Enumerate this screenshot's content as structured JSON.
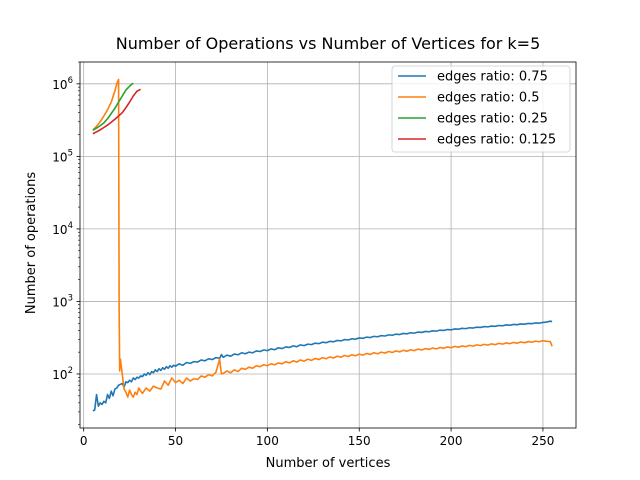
{
  "chart_data": {
    "type": "line",
    "title": "Number of Operations vs Number of Vertices for k=5",
    "xlabel": "Number of vertices",
    "ylabel": "Number of operations",
    "xlim": [
      -2,
      268
    ],
    "ylim": [
      18,
      2000000
    ],
    "yscale": "log",
    "grid": true,
    "legend_position": "top-right",
    "x_ticks": [
      0,
      50,
      100,
      150,
      200,
      250
    ],
    "x_tick_labels": [
      "0",
      "50",
      "100",
      "150",
      "200",
      "250"
    ],
    "y_ticks": [
      100,
      1000,
      10000,
      100000,
      1000000
    ],
    "y_tick_labels": [
      {
        "base": "10",
        "exp": "2"
      },
      {
        "base": "10",
        "exp": "3"
      },
      {
        "base": "10",
        "exp": "4"
      },
      {
        "base": "10",
        "exp": "5"
      },
      {
        "base": "10",
        "exp": "6"
      }
    ],
    "series": [
      {
        "name": "edges ratio: 0.75",
        "color": "#1f77b4",
        "points": [
          [
            5,
            31
          ],
          [
            6,
            32
          ],
          [
            7,
            52
          ],
          [
            8,
            36
          ],
          [
            9,
            40
          ],
          [
            10,
            38
          ],
          [
            11,
            42
          ],
          [
            12,
            40
          ],
          [
            13,
            52
          ],
          [
            14,
            46
          ],
          [
            15,
            58
          ],
          [
            16,
            50
          ],
          [
            17,
            62
          ],
          [
            18,
            64
          ],
          [
            19,
            70
          ],
          [
            20,
            72
          ],
          [
            21,
            74
          ],
          [
            22,
            66
          ],
          [
            23,
            78
          ],
          [
            24,
            76
          ],
          [
            25,
            82
          ],
          [
            26,
            78
          ],
          [
            27,
            88
          ],
          [
            28,
            84
          ],
          [
            29,
            90
          ],
          [
            30,
            88
          ],
          [
            31,
            94
          ],
          [
            32,
            92
          ],
          [
            33,
            100
          ],
          [
            34,
            96
          ],
          [
            35,
            104
          ],
          [
            36,
            98
          ],
          [
            37,
            108
          ],
          [
            38,
            104
          ],
          [
            39,
            114
          ],
          [
            40,
            108
          ],
          [
            41,
            118
          ],
          [
            42,
            112
          ],
          [
            43,
            122
          ],
          [
            44,
            116
          ],
          [
            45,
            126
          ],
          [
            46,
            120
          ],
          [
            47,
            130
          ],
          [
            48,
            124
          ],
          [
            49,
            132
          ],
          [
            50,
            128
          ],
          [
            52,
            138
          ],
          [
            54,
            132
          ],
          [
            56,
            144
          ],
          [
            58,
            140
          ],
          [
            60,
            148
          ],
          [
            62,
            146
          ],
          [
            64,
            156
          ],
          [
            66,
            152
          ],
          [
            68,
            162
          ],
          [
            70,
            158
          ],
          [
            72,
            168
          ],
          [
            74,
            164
          ],
          [
            75,
            185
          ],
          [
            76,
            170
          ],
          [
            78,
            182
          ],
          [
            80,
            176
          ],
          [
            82,
            188
          ],
          [
            84,
            184
          ],
          [
            86,
            196
          ],
          [
            88,
            190
          ],
          [
            90,
            200
          ],
          [
            92,
            196
          ],
          [
            94,
            208
          ],
          [
            96,
            204
          ],
          [
            98,
            214
          ],
          [
            100,
            210
          ],
          [
            102,
            222
          ],
          [
            104,
            216
          ],
          [
            106,
            230
          ],
          [
            108,
            224
          ],
          [
            110,
            236
          ],
          [
            112,
            232
          ],
          [
            114,
            244
          ],
          [
            116,
            238
          ],
          [
            118,
            252
          ],
          [
            120,
            246
          ],
          [
            122,
            258
          ],
          [
            124,
            254
          ],
          [
            126,
            266
          ],
          [
            128,
            262
          ],
          [
            130,
            274
          ],
          [
            132,
            270
          ],
          [
            134,
            282
          ],
          [
            136,
            278
          ],
          [
            138,
            290
          ],
          [
            140,
            286
          ],
          [
            142,
            298
          ],
          [
            144,
            294
          ],
          [
            146,
            306
          ],
          [
            148,
            302
          ],
          [
            150,
            314
          ],
          [
            152,
            310
          ],
          [
            154,
            322
          ],
          [
            156,
            318
          ],
          [
            158,
            330
          ],
          [
            160,
            326
          ],
          [
            162,
            338
          ],
          [
            164,
            334
          ],
          [
            166,
            346
          ],
          [
            168,
            342
          ],
          [
            170,
            354
          ],
          [
            172,
            350
          ],
          [
            174,
            362
          ],
          [
            176,
            358
          ],
          [
            178,
            370
          ],
          [
            180,
            366
          ],
          [
            182,
            378
          ],
          [
            184,
            374
          ],
          [
            186,
            386
          ],
          [
            188,
            382
          ],
          [
            190,
            394
          ],
          [
            192,
            390
          ],
          [
            194,
            402
          ],
          [
            196,
            398
          ],
          [
            198,
            410
          ],
          [
            200,
            406
          ],
          [
            202,
            418
          ],
          [
            204,
            414
          ],
          [
            206,
            426
          ],
          [
            208,
            422
          ],
          [
            210,
            434
          ],
          [
            212,
            430
          ],
          [
            214,
            442
          ],
          [
            216,
            438
          ],
          [
            218,
            450
          ],
          [
            220,
            446
          ],
          [
            222,
            458
          ],
          [
            224,
            454
          ],
          [
            226,
            466
          ],
          [
            228,
            462
          ],
          [
            230,
            474
          ],
          [
            232,
            470
          ],
          [
            234,
            482
          ],
          [
            236,
            478
          ],
          [
            238,
            490
          ],
          [
            240,
            486
          ],
          [
            242,
            498
          ],
          [
            244,
            494
          ],
          [
            246,
            506
          ],
          [
            248,
            502
          ],
          [
            250,
            514
          ],
          [
            252,
            520
          ],
          [
            254,
            534
          ],
          [
            255,
            528
          ]
        ]
      },
      {
        "name": "edges ratio: 0.5",
        "color": "#ff7f0e",
        "points": [
          [
            5,
            230000
          ],
          [
            7,
            260000
          ],
          [
            9,
            300000
          ],
          [
            11,
            360000
          ],
          [
            13,
            440000
          ],
          [
            15,
            560000
          ],
          [
            17,
            800000
          ],
          [
            18,
            1000000
          ],
          [
            19,
            1150000
          ],
          [
            19.3,
            800
          ],
          [
            19.6,
            110
          ],
          [
            20,
            160
          ],
          [
            21,
            100
          ],
          [
            22,
            62
          ],
          [
            23,
            56
          ],
          [
            24,
            48
          ],
          [
            25,
            60
          ],
          [
            26,
            52
          ],
          [
            27,
            48
          ],
          [
            28,
            56
          ],
          [
            29,
            52
          ],
          [
            30,
            64
          ],
          [
            31,
            58
          ],
          [
            32,
            54
          ],
          [
            34,
            64
          ],
          [
            36,
            58
          ],
          [
            38,
            68
          ],
          [
            40,
            64
          ],
          [
            42,
            62
          ],
          [
            44,
            80
          ],
          [
            46,
            70
          ],
          [
            48,
            88
          ],
          [
            50,
            76
          ],
          [
            52,
            82
          ],
          [
            54,
            74
          ],
          [
            56,
            88
          ],
          [
            58,
            80
          ],
          [
            60,
            86
          ],
          [
            62,
            84
          ],
          [
            64,
            94
          ],
          [
            66,
            90
          ],
          [
            68,
            98
          ],
          [
            70,
            94
          ],
          [
            72,
            106
          ],
          [
            74,
            160
          ],
          [
            75,
            100
          ],
          [
            76,
            102
          ],
          [
            78,
            110
          ],
          [
            80,
            104
          ],
          [
            82,
            114
          ],
          [
            84,
            108
          ],
          [
            86,
            120
          ],
          [
            88,
            116
          ],
          [
            90,
            124
          ],
          [
            92,
            120
          ],
          [
            94,
            130
          ],
          [
            96,
            126
          ],
          [
            98,
            134
          ],
          [
            100,
            130
          ],
          [
            102,
            138
          ],
          [
            104,
            134
          ],
          [
            106,
            142
          ],
          [
            108,
            138
          ],
          [
            110,
            148
          ],
          [
            112,
            142
          ],
          [
            114,
            152
          ],
          [
            116,
            146
          ],
          [
            118,
            156
          ],
          [
            120,
            150
          ],
          [
            122,
            160
          ],
          [
            124,
            154
          ],
          [
            126,
            164
          ],
          [
            128,
            158
          ],
          [
            130,
            168
          ],
          [
            132,
            162
          ],
          [
            134,
            172
          ],
          [
            136,
            166
          ],
          [
            138,
            176
          ],
          [
            140,
            170
          ],
          [
            142,
            180
          ],
          [
            144,
            174
          ],
          [
            146,
            184
          ],
          [
            148,
            178
          ],
          [
            150,
            188
          ],
          [
            152,
            182
          ],
          [
            154,
            192
          ],
          [
            156,
            186
          ],
          [
            158,
            196
          ],
          [
            160,
            190
          ],
          [
            162,
            200
          ],
          [
            164,
            194
          ],
          [
            166,
            204
          ],
          [
            168,
            198
          ],
          [
            170,
            208
          ],
          [
            172,
            202
          ],
          [
            174,
            212
          ],
          [
            176,
            206
          ],
          [
            178,
            216
          ],
          [
            180,
            210
          ],
          [
            182,
            220
          ],
          [
            184,
            214
          ],
          [
            186,
            224
          ],
          [
            188,
            218
          ],
          [
            190,
            228
          ],
          [
            192,
            222
          ],
          [
            194,
            232
          ],
          [
            196,
            226
          ],
          [
            198,
            236
          ],
          [
            200,
            230
          ],
          [
            202,
            240
          ],
          [
            204,
            234
          ],
          [
            206,
            244
          ],
          [
            208,
            238
          ],
          [
            210,
            248
          ],
          [
            212,
            242
          ],
          [
            214,
            252
          ],
          [
            216,
            246
          ],
          [
            218,
            256
          ],
          [
            220,
            250
          ],
          [
            222,
            260
          ],
          [
            224,
            254
          ],
          [
            226,
            264
          ],
          [
            228,
            258
          ],
          [
            230,
            268
          ],
          [
            232,
            262
          ],
          [
            234,
            272
          ],
          [
            236,
            266
          ],
          [
            238,
            276
          ],
          [
            240,
            270
          ],
          [
            242,
            280
          ],
          [
            244,
            274
          ],
          [
            246,
            284
          ],
          [
            248,
            278
          ],
          [
            250,
            288
          ],
          [
            252,
            282
          ],
          [
            254,
            280
          ],
          [
            255,
            240
          ]
        ]
      },
      {
        "name": "edges ratio: 0.25",
        "color": "#2ca02c",
        "points": [
          [
            5,
            230000
          ],
          [
            7,
            245000
          ],
          [
            9,
            265000
          ],
          [
            11,
            290000
          ],
          [
            13,
            330000
          ],
          [
            15,
            390000
          ],
          [
            17,
            460000
          ],
          [
            19,
            560000
          ],
          [
            21,
            680000
          ],
          [
            23,
            820000
          ],
          [
            25,
            930000
          ],
          [
            26,
            980000
          ],
          [
            27,
            1020000
          ]
        ]
      },
      {
        "name": "edges ratio: 0.125",
        "color": "#d62728",
        "points": [
          [
            5,
            205000
          ],
          [
            7,
            218000
          ],
          [
            9,
            232000
          ],
          [
            11,
            250000
          ],
          [
            13,
            270000
          ],
          [
            15,
            295000
          ],
          [
            17,
            325000
          ],
          [
            19,
            360000
          ],
          [
            21,
            400000
          ],
          [
            23,
            470000
          ],
          [
            25,
            560000
          ],
          [
            27,
            680000
          ],
          [
            29,
            790000
          ],
          [
            31,
            840000
          ]
        ]
      }
    ]
  }
}
